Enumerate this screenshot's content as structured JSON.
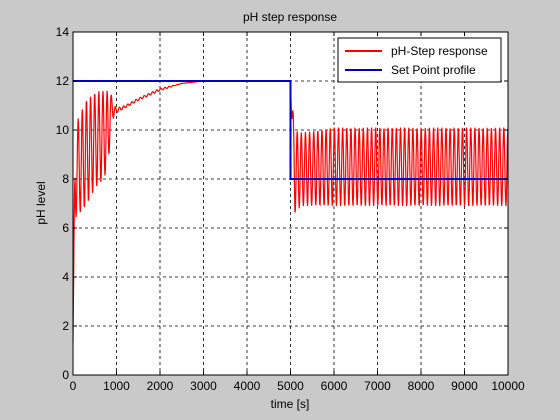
{
  "chart_data": {
    "type": "line",
    "title": "pH step response",
    "xlabel": "time [s]",
    "ylabel": "pH level",
    "xlim": [
      0,
      10000
    ],
    "ylim": [
      0,
      14
    ],
    "xticks": [
      0,
      1000,
      2000,
      3000,
      4000,
      5000,
      6000,
      7000,
      8000,
      9000,
      10000
    ],
    "yticks": [
      0,
      2,
      4,
      6,
      8,
      10,
      12,
      14
    ],
    "grid": true,
    "grid_style": "dashed",
    "legend_position": "top-right",
    "colors": {
      "background": "#c9c9c9",
      "plot_area": "#ffffff",
      "response": "#ff0000",
      "setpoint": "#0000cc"
    },
    "series": [
      {
        "name": "Set Point profile",
        "color": "#0000cc",
        "x": [
          0,
          5000,
          5000,
          10000
        ],
        "y": [
          12,
          12,
          8,
          8
        ]
      },
      {
        "name": "pH-Step response",
        "color": "#ff0000",
        "envelope_points": {
          "x": [
            0,
            50,
            100,
            200,
            300,
            400,
            500,
            600,
            700,
            800,
            900,
            950,
            1000,
            1200,
            1500,
            2000,
            2500,
            3000,
            3500,
            4000,
            4500,
            5000,
            5030,
            5100,
            5200,
            5300,
            6000,
            7000,
            8000,
            9000,
            10000
          ],
          "upper": [
            1.3,
            10.4,
            10.4,
            10.8,
            11.2,
            11.4,
            11.5,
            11.6,
            11.6,
            11.6,
            11.4,
            11.0,
            10.9,
            11.0,
            11.3,
            11.7,
            11.9,
            12.0,
            12.0,
            12.0,
            12.0,
            12.0,
            11.3,
            10.0,
            9.9,
            9.9,
            10.1,
            10.1,
            10.1,
            10.1,
            10.1
          ],
          "lower": [
            1.3,
            6.4,
            6.5,
            6.7,
            6.9,
            7.2,
            7.6,
            7.8,
            8.0,
            8.4,
            10.5,
            10.5,
            10.7,
            10.9,
            11.2,
            11.6,
            11.9,
            12.0,
            12.0,
            12.0,
            12.0,
            12.0,
            10.0,
            6.6,
            6.8,
            6.9,
            6.9,
            6.9,
            6.9,
            6.9,
            6.9
          ]
        },
        "oscillation_period": 95
      }
    ]
  }
}
